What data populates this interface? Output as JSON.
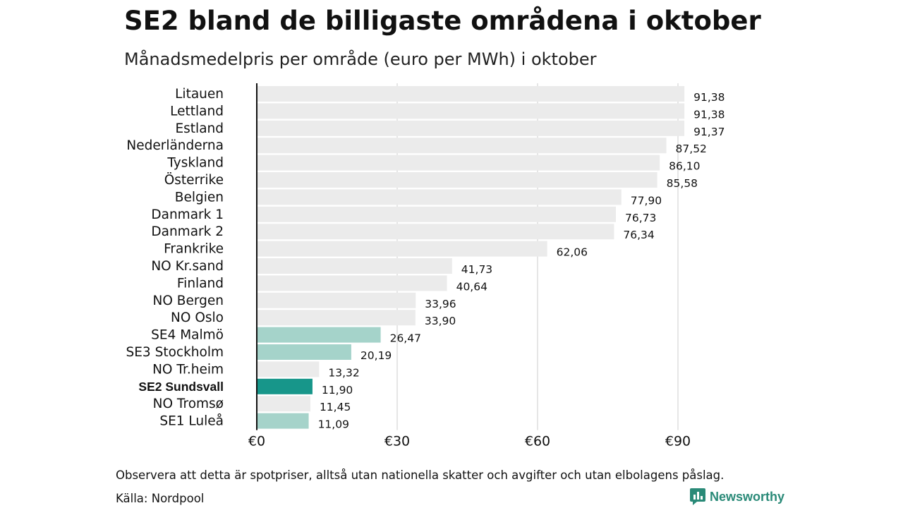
{
  "title": "SE2 bland de billigaste områdena i oktober",
  "subtitle": "Månadsmedelpris per område (euro per MWh) i oktober",
  "note": "Observera att detta är spotpriser, alltså utan nationella skatter och avgifter och utan elbolagens påslag.",
  "source": "Källa: Nordpool",
  "brand": {
    "name": "Newsworthy",
    "icon": "newsworthy-logo-icon",
    "color": "#2a8a78"
  },
  "colors": {
    "default": "#ebebeb",
    "swedish": "#a5d3ca",
    "highlight": "#17968a",
    "axis": "#111111",
    "grid": "#cccccc"
  },
  "chart_data": {
    "type": "bar",
    "orientation": "horizontal",
    "categories": [
      "Litauen",
      "Lettland",
      "Estland",
      "Nederländerna",
      "Tyskland",
      "Österrike",
      "Belgien",
      "Danmark 1",
      "Danmark 2",
      "Frankrike",
      "NO Kr.sand",
      "Finland",
      "NO Bergen",
      "NO Oslo",
      "SE4 Malmö",
      "SE3 Stockholm",
      "NO Tr.heim",
      "SE2 Sundsvall",
      "NO Tromsø",
      "SE1 Luleå"
    ],
    "values": [
      91.38,
      91.38,
      91.37,
      87.52,
      86.1,
      85.58,
      77.9,
      76.73,
      76.34,
      62.06,
      41.73,
      40.64,
      33.96,
      33.9,
      26.47,
      20.19,
      13.32,
      11.9,
      11.45,
      11.09
    ],
    "value_labels": [
      "91,38",
      "91,38",
      "91,37",
      "87,52",
      "86,10",
      "85,58",
      "77,90",
      "76,73",
      "76,34",
      "62,06",
      "41,73",
      "40,64",
      "33,96",
      "33,90",
      "26,47",
      "20,19",
      "13,32",
      "11,90",
      "11,45",
      "11,09"
    ],
    "bar_groups": [
      "other",
      "other",
      "other",
      "other",
      "other",
      "other",
      "other",
      "other",
      "other",
      "other",
      "other",
      "other",
      "other",
      "other",
      "swedish",
      "swedish",
      "other",
      "highlight",
      "other",
      "swedish"
    ],
    "highlighted_category": "SE2 Sundsvall",
    "xlim": [
      0,
      91.38
    ],
    "x_ticks": [
      0,
      30,
      60,
      90
    ],
    "x_tick_labels": [
      "€0",
      "€30",
      "€60",
      "€90"
    ],
    "xlabel": "",
    "ylabel": "",
    "grid": true,
    "legend": "none"
  }
}
